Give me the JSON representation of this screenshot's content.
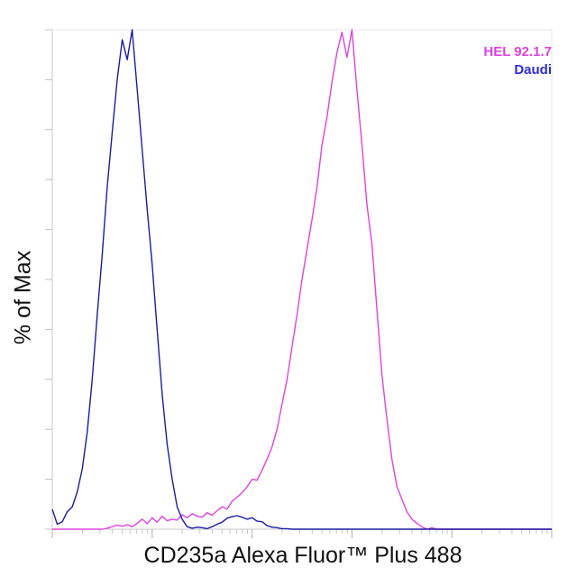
{
  "chart_data": {
    "type": "line",
    "title": "",
    "xlabel": "CD235a Alexa Fluor™ Plus 488",
    "ylabel": "% of Max",
    "xscale": "log",
    "ylim": [
      0,
      100
    ],
    "grid": false,
    "legend_position": "top-right",
    "series": [
      {
        "name": "HEL 92.1.7",
        "color": "#dd44dd",
        "x": [
          1.0,
          1.05,
          1.1,
          1.15,
          1.2,
          1.25,
          1.3,
          1.35,
          1.4,
          1.45,
          1.5,
          1.55,
          1.6,
          1.65,
          1.7,
          1.75,
          1.8,
          1.85,
          1.9,
          1.95,
          2.0,
          2.05,
          2.1,
          2.15,
          2.2,
          2.25,
          2.3,
          2.35,
          2.4,
          2.45,
          2.5,
          2.55,
          2.6,
          2.65,
          2.7,
          2.75,
          2.8,
          2.85,
          2.9,
          2.95,
          3.0,
          3.05,
          3.1,
          3.15,
          3.2,
          3.25,
          3.3,
          3.35,
          3.4,
          3.45,
          3.5,
          3.55,
          3.6,
          3.65,
          3.7,
          3.75,
          3.8,
          3.85,
          3.9,
          3.95,
          4.0,
          4.05,
          4.1,
          4.15,
          4.2,
          4.25,
          4.3,
          4.35,
          4.4,
          4.45,
          4.5,
          4.55,
          4.6,
          4.65,
          4.7,
          4.75,
          4.8,
          4.85,
          4.9,
          4.95,
          5.0,
          5.05,
          5.1,
          5.15,
          5.2,
          5.25,
          5.3,
          5.35,
          5.4,
          5.45,
          5.5,
          5.55,
          5.6,
          5.65,
          5.7,
          5.75,
          5.8,
          5.85,
          5.9,
          5.95,
          6.0
        ],
        "y": [
          0,
          0,
          0,
          0,
          0,
          0,
          0,
          0,
          0,
          0,
          0,
          0.2,
          0.5,
          0.8,
          0.6,
          0.9,
          0.5,
          1.2,
          2.0,
          1.1,
          2.3,
          1.4,
          2.6,
          1.7,
          2.0,
          1.8,
          2.9,
          2.3,
          3.1,
          2.6,
          2.4,
          3.3,
          2.8,
          3.7,
          4.5,
          4.0,
          5.6,
          6.4,
          7.3,
          8.5,
          10.0,
          9.8,
          11.8,
          14.0,
          16.5,
          20.0,
          25.0,
          30.0,
          36.5,
          43.0,
          50.0,
          56.0,
          62.0,
          68.5,
          77.0,
          82.5,
          89.5,
          95.5,
          99.5,
          94.5,
          100.0,
          88.0,
          77.0,
          65.0,
          57.0,
          44.0,
          31.0,
          22.0,
          14.0,
          8.5,
          6.0,
          3.5,
          2.0,
          1.2,
          0.5,
          0,
          0.3,
          0,
          0,
          0,
          0,
          0,
          0,
          0,
          0,
          0,
          0,
          0,
          0,
          0,
          0,
          0,
          0,
          0,
          0,
          0,
          0,
          0,
          0,
          0,
          0
        ]
      },
      {
        "name": "Daudi",
        "color": "#1c1ca0",
        "x": [
          1.0,
          1.05,
          1.1,
          1.15,
          1.2,
          1.25,
          1.3,
          1.35,
          1.4,
          1.45,
          1.5,
          1.55,
          1.6,
          1.65,
          1.7,
          1.75,
          1.8,
          1.85,
          1.9,
          1.95,
          2.0,
          2.05,
          2.1,
          2.15,
          2.2,
          2.25,
          2.3,
          2.35,
          2.4,
          2.45,
          2.5,
          2.55,
          2.6,
          2.65,
          2.7,
          2.75,
          2.8,
          2.85,
          2.9,
          2.95,
          3.0,
          3.05,
          3.1,
          3.15,
          3.2,
          3.25,
          3.3,
          3.35,
          3.4,
          3.45,
          3.5,
          3.55,
          3.6,
          3.65,
          3.7,
          3.75,
          3.8,
          3.85,
          3.9,
          3.95,
          4.0,
          4.05,
          4.1,
          4.15,
          4.2,
          4.25,
          4.3,
          4.35,
          4.4,
          4.45,
          4.5,
          4.55,
          4.6,
          4.65,
          4.7,
          4.75,
          4.8,
          4.85,
          4.9,
          4.95,
          5.0,
          5.05,
          5.1,
          5.15,
          5.2,
          5.25,
          5.3,
          5.35,
          5.4,
          5.45,
          5.5,
          5.55,
          5.6,
          5.65,
          5.7,
          5.75,
          5.8,
          5.85,
          5.9,
          5.95,
          6.0
        ],
        "y": [
          4.0,
          1.0,
          1.5,
          3.5,
          4.5,
          7.5,
          12.0,
          19.5,
          30.0,
          43.0,
          55.0,
          68.5,
          79.5,
          90.0,
          98.0,
          94.0,
          100.0,
          88.0,
          76.0,
          64.0,
          53.0,
          40.0,
          27.0,
          17.0,
          10.0,
          4.5,
          2.0,
          0.5,
          0.2,
          0.4,
          0.3,
          0.1,
          0.5,
          1.0,
          1.4,
          2.2,
          2.5,
          2.7,
          2.4,
          2.0,
          2.3,
          1.6,
          1.5,
          0.7,
          0.4,
          0.3,
          0.1,
          0.1,
          0,
          0,
          0,
          0,
          0,
          0,
          0,
          0,
          0,
          0,
          0,
          0,
          0,
          0,
          0,
          0,
          0,
          0,
          0,
          0,
          0,
          0,
          0,
          0,
          0,
          0,
          0,
          0,
          0,
          0,
          0,
          0,
          0,
          0,
          0,
          0,
          0,
          0,
          0,
          0,
          0,
          0,
          0,
          0,
          0,
          0,
          0,
          0,
          0,
          0,
          0,
          0,
          0
        ]
      }
    ]
  }
}
